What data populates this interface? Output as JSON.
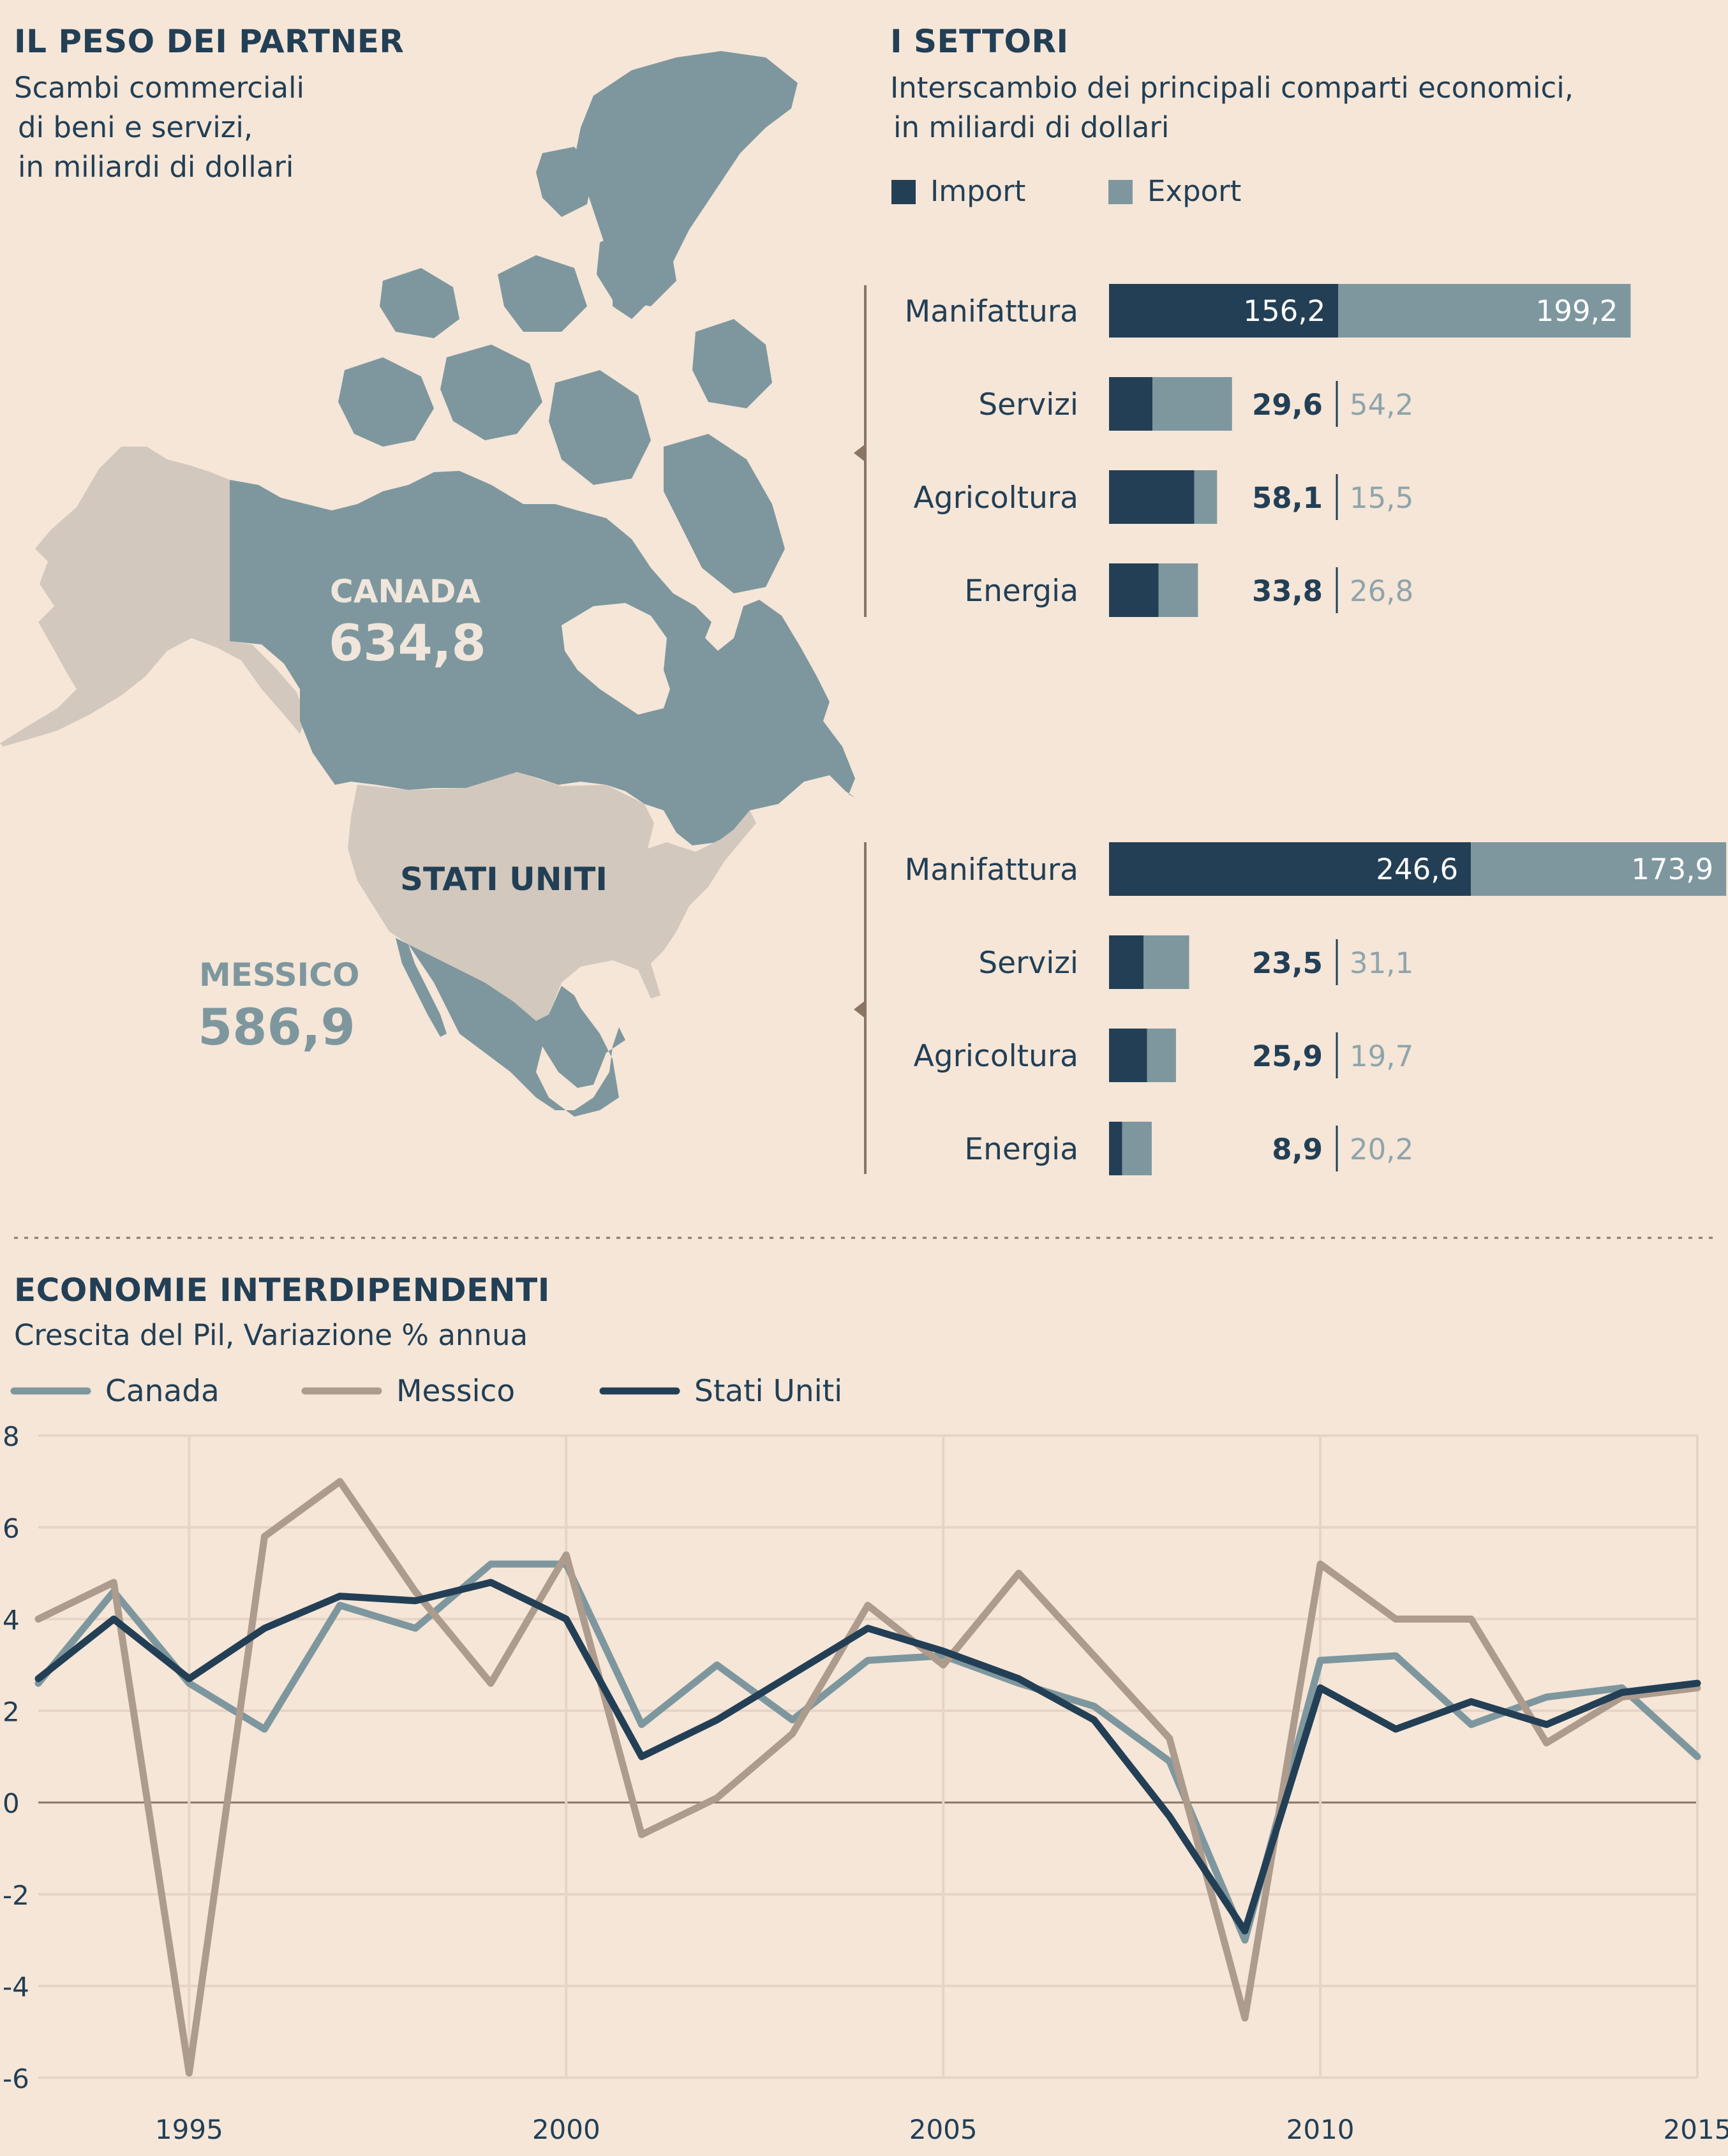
{
  "partners": {
    "title": "IL PESO DEI PARTNER",
    "subtitle_lines": [
      "Scambi commerciali",
      "di beni e servizi,",
      "in miliardi di dollari"
    ],
    "canada_label": "CANADA",
    "canada_value": "634,8",
    "usa_label": "STATI UNITI",
    "mexico_label": "MESSICO",
    "mexico_value": "586,9"
  },
  "sectors": {
    "title": "I SETTORI",
    "subtitle_lines": [
      "Interscambio dei principali comparti economici,",
      "in miliardi di dollari"
    ],
    "legend": {
      "import": "Import",
      "export": "Export"
    }
  },
  "timeline": {
    "title": "ECONOMIE INTERDIPENDENTI",
    "subtitle": "Crescita del Pil, Variazione % annua"
  },
  "colors": {
    "background": "#f5e6d8",
    "import": "#233f55",
    "export": "#7e979e",
    "canada": "#7e979e",
    "messico": "#ad9b8d",
    "stati_uniti": "#233f55",
    "land_other": "#d3c8bd"
  },
  "chart_data": [
    {
      "type": "bar",
      "stacked": true,
      "orientation": "horizontal",
      "partner": "Canada",
      "categories": [
        "Manifattura",
        "Servizi",
        "Agricoltura",
        "Energia"
      ],
      "series": [
        {
          "name": "Import",
          "values": [
            156.2,
            29.6,
            58.1,
            33.8
          ],
          "labels": [
            "156,2",
            "29,6",
            "58,1",
            "33,8"
          ]
        },
        {
          "name": "Export",
          "values": [
            199.2,
            54.2,
            15.5,
            26.8
          ],
          "labels": [
            "199,2",
            "54,2",
            "15,5",
            "26,8"
          ]
        }
      ]
    },
    {
      "type": "bar",
      "stacked": true,
      "orientation": "horizontal",
      "partner": "Messico",
      "categories": [
        "Manifattura",
        "Servizi",
        "Agricoltura",
        "Energia"
      ],
      "series": [
        {
          "name": "Import",
          "values": [
            246.6,
            23.5,
            25.9,
            8.9
          ],
          "labels": [
            "246,6",
            "23,5",
            "25,9",
            "8,9"
          ]
        },
        {
          "name": "Export",
          "values": [
            173.9,
            31.1,
            19.7,
            20.2
          ],
          "labels": [
            "173,9",
            "31,1",
            "19,7",
            "20,2"
          ]
        }
      ]
    },
    {
      "type": "line",
      "x": [
        1993,
        1994,
        1995,
        1996,
        1997,
        1998,
        1999,
        2000,
        2001,
        2002,
        2003,
        2004,
        2005,
        2006,
        2007,
        2008,
        2009,
        2010,
        2011,
        2012,
        2013,
        2014,
        2015
      ],
      "series": [
        {
          "name": "Canada",
          "values": [
            2.6,
            4.6,
            2.6,
            1.6,
            4.3,
            3.8,
            5.2,
            5.2,
            1.7,
            3.0,
            1.8,
            3.1,
            3.2,
            2.6,
            2.1,
            0.9,
            -3.0,
            3.1,
            3.2,
            1.7,
            2.3,
            2.5,
            1.0
          ]
        },
        {
          "name": "Messico",
          "values": [
            4.0,
            4.8,
            -5.9,
            5.8,
            7.0,
            4.6,
            2.6,
            5.4,
            -0.7,
            0.1,
            1.5,
            4.3,
            3.0,
            5.0,
            3.2,
            1.4,
            -4.7,
            5.2,
            4.0,
            4.0,
            1.3,
            2.3,
            2.5
          ]
        },
        {
          "name": "Stati Uniti",
          "values": [
            2.7,
            4.0,
            2.7,
            3.8,
            4.5,
            4.4,
            4.8,
            4.0,
            1.0,
            1.8,
            2.8,
            3.8,
            3.3,
            2.7,
            1.8,
            -0.3,
            -2.8,
            2.5,
            1.6,
            2.2,
            1.7,
            2.4,
            2.6
          ]
        }
      ],
      "xticks": [
        "1995",
        "2000",
        "2005",
        "2010",
        "2015"
      ],
      "yticks": [
        "8",
        "6",
        "4",
        "2",
        "0",
        "-2",
        "-4",
        "-6"
      ],
      "ylim": [
        -6,
        8
      ],
      "xlim": [
        1993,
        2015
      ],
      "legend_position": "top-left",
      "grid": true
    }
  ]
}
